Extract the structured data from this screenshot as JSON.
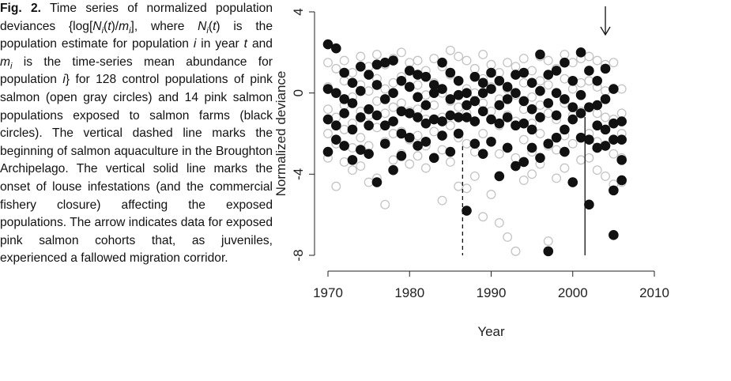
{
  "caption": [
    {
      "text": "Fig. 2.",
      "bold": true
    },
    {
      "text": " Time series of normalized population deviances {log["
    },
    {
      "text": "N",
      "italic": true
    },
    {
      "text": "i",
      "italic": true,
      "sub": true
    },
    {
      "text": "(",
      "italic": false
    },
    {
      "text": "t",
      "italic": true
    },
    {
      "text": ")/"
    },
    {
      "text": "m",
      "italic": true
    },
    {
      "text": "i",
      "italic": true,
      "sub": true
    },
    {
      "text": "], where "
    },
    {
      "text": "N",
      "italic": true
    },
    {
      "text": "i",
      "italic": true,
      "sub": true
    },
    {
      "text": "("
    },
    {
      "text": "t",
      "italic": true
    },
    {
      "text": ") is the population estimate for population "
    },
    {
      "text": "i",
      "italic": true
    },
    {
      "text": " in year "
    },
    {
      "text": "t",
      "italic": true
    },
    {
      "text": " and "
    },
    {
      "text": "m",
      "italic": true
    },
    {
      "text": "i",
      "italic": true,
      "sub": true
    },
    {
      "text": " is the time-series mean abundance for population "
    },
    {
      "text": "i",
      "italic": true
    },
    {
      "text": "} for 128 control populations of pink salmon (open gray circles) and 14 pink salmon populations exposed to salmon farms (black circles). The vertical dashed line marks the beginning of salmon aquaculture in the Broughton Archipelago. The vertical solid line marks the onset of louse infestations (and the commercial fishery closure) affecting the exposed populations. The arrow indicates data for exposed pink salmon cohorts that, as juveniles, experienced a fallowed migration corridor."
    }
  ],
  "chart_data": {
    "type": "scatter",
    "x_label": "Year",
    "y_label": "Normalized deviance",
    "xlim": [
      1970,
      2010
    ],
    "ylim": [
      -8,
      4
    ],
    "xticks": [
      1970,
      1980,
      1990,
      2000,
      2010
    ],
    "yticks": [
      4,
      0,
      -4,
      -8
    ],
    "dashed_line_x": 1986.5,
    "solid_line_x": 2001.5,
    "arrow_x": 2004,
    "series": [
      {
        "color": "#c4c4c4",
        "filled": false,
        "x": [
          1970,
          1970,
          1970,
          1970,
          1970,
          1971,
          1971,
          1971,
          1971,
          1971,
          1972,
          1972,
          1972,
          1972,
          1972,
          1973,
          1973,
          1973,
          1973,
          1973,
          1974,
          1974,
          1974,
          1974,
          1974,
          1975,
          1975,
          1975,
          1975,
          1975,
          1976,
          1976,
          1976,
          1976,
          1976,
          1977,
          1977,
          1977,
          1977,
          1977,
          1978,
          1978,
          1978,
          1978,
          1978,
          1979,
          1979,
          1979,
          1979,
          1979,
          1980,
          1980,
          1980,
          1980,
          1980,
          1981,
          1981,
          1981,
          1981,
          1981,
          1982,
          1982,
          1982,
          1982,
          1982,
          1983,
          1983,
          1983,
          1983,
          1983,
          1984,
          1984,
          1984,
          1984,
          1984,
          1985,
          1985,
          1985,
          1985,
          1985,
          1986,
          1986,
          1986,
          1986,
          1986,
          1987,
          1987,
          1987,
          1987,
          1987,
          1988,
          1988,
          1988,
          1988,
          1988,
          1989,
          1989,
          1989,
          1989,
          1989,
          1990,
          1990,
          1990,
          1990,
          1990,
          1991,
          1991,
          1991,
          1991,
          1991,
          1992,
          1992,
          1992,
          1992,
          1992,
          1993,
          1993,
          1993,
          1993,
          1993,
          1994,
          1994,
          1994,
          1994,
          1994,
          1995,
          1995,
          1995,
          1995,
          1995,
          1996,
          1996,
          1996,
          1996,
          1996,
          1997,
          1997,
          1997,
          1997,
          1997,
          1998,
          1998,
          1998,
          1998,
          1998,
          1999,
          1999,
          1999,
          1999,
          1999,
          2000,
          2000,
          2000,
          2000,
          2000,
          2001,
          2001,
          2001,
          2001,
          2001,
          2002,
          2002,
          2002,
          2002,
          2002,
          2003,
          2003,
          2003,
          2003,
          2003,
          2004,
          2004,
          2004,
          2004,
          2004,
          2005,
          2005,
          2005,
          2005,
          2005,
          2006,
          2006,
          2006,
          2006,
          2006
        ],
        "values": [
          1.5,
          0.3,
          -0.8,
          -2.0,
          -3.2,
          1.2,
          0.0,
          -1.2,
          -2.5,
          -4.6,
          1.6,
          0.6,
          -0.6,
          -1.8,
          -3.4,
          1.0,
          -0.2,
          -1.5,
          -2.7,
          -3.8,
          1.8,
          0.4,
          -0.9,
          -2.2,
          -3.6,
          1.3,
          0.1,
          -1.1,
          -2.6,
          -4.4,
          1.9,
          0.7,
          -0.4,
          -1.7,
          -4.2,
          1.4,
          0.2,
          -1.0,
          -2.4,
          -5.5,
          1.7,
          0.5,
          -0.7,
          -2.0,
          -3.3,
          2.0,
          0.8,
          -0.5,
          -1.9,
          -3.0,
          1.5,
          0.3,
          -0.9,
          -2.3,
          -3.5,
          1.6,
          0.4,
          -0.8,
          -2.1,
          -3.1,
          1.1,
          -0.1,
          -1.3,
          -2.6,
          -3.7,
          1.7,
          0.5,
          -0.6,
          -1.9,
          -3.2,
          1.3,
          0.0,
          -1.2,
          -2.8,
          -5.3,
          2.1,
          0.9,
          -0.4,
          -1.6,
          -3.4,
          1.8,
          0.6,
          -0.7,
          -2.2,
          -4.6,
          1.6,
          0.2,
          -1.0,
          -2.5,
          -4.7,
          1.2,
          0.0,
          -1.4,
          -2.9,
          -4.1,
          1.9,
          0.7,
          -0.5,
          -2.0,
          -6.1,
          1.4,
          0.3,
          -0.9,
          -2.4,
          -5.0,
          1.0,
          -0.3,
          -1.6,
          -3.0,
          -6.4,
          1.5,
          0.2,
          -1.1,
          -2.7,
          -7.1,
          1.3,
          -0.1,
          -1.4,
          -3.2,
          -7.8,
          1.7,
          0.5,
          -0.8,
          -2.3,
          -4.3,
          1.1,
          -0.2,
          -1.5,
          -2.9,
          -4.0,
          1.8,
          0.6,
          -0.6,
          -2.0,
          -3.5,
          1.6,
          0.4,
          -1.0,
          -2.6,
          -7.3,
          1.2,
          0.0,
          -1.3,
          -2.8,
          -4.2,
          1.9,
          0.7,
          -0.5,
          -2.1,
          -3.7,
          1.5,
          0.2,
          -1.1,
          -2.5,
          -4.4,
          1.7,
          0.5,
          -0.9,
          -2.2,
          -3.3,
          1.8,
          0.6,
          -0.7,
          -2.0,
          -3.2,
          1.6,
          0.3,
          -1.0,
          -2.4,
          -3.8,
          1.4,
          0.1,
          -1.2,
          -2.6,
          -4.1,
          1.5,
          0.2,
          -1.3,
          -3.0,
          -4.5,
          0.2,
          -1.0,
          -2.0,
          -3.2,
          -4.4
        ]
      },
      {
        "color": "#111111",
        "filled": true,
        "x": [
          1970,
          1970,
          1970,
          1970,
          1971,
          1971,
          1971,
          1971,
          1972,
          1972,
          1972,
          1972,
          1973,
          1973,
          1973,
          1973,
          1974,
          1974,
          1974,
          1974,
          1975,
          1975,
          1975,
          1975,
          1976,
          1976,
          1976,
          1976,
          1977,
          1977,
          1977,
          1977,
          1978,
          1978,
          1978,
          1978,
          1979,
          1979,
          1979,
          1979,
          1980,
          1980,
          1980,
          1980,
          1981,
          1981,
          1981,
          1981,
          1982,
          1982,
          1982,
          1982,
          1983,
          1983,
          1983,
          1983,
          1984,
          1984,
          1984,
          1984,
          1985,
          1985,
          1985,
          1985,
          1986,
          1986,
          1986,
          1986,
          1987,
          1987,
          1987,
          1987,
          1988,
          1988,
          1988,
          1988,
          1989,
          1989,
          1989,
          1989,
          1990,
          1990,
          1990,
          1990,
          1991,
          1991,
          1991,
          1991,
          1992,
          1992,
          1992,
          1992,
          1993,
          1993,
          1993,
          1993,
          1994,
          1994,
          1994,
          1994,
          1995,
          1995,
          1995,
          1995,
          1996,
          1996,
          1996,
          1996,
          1997,
          1997,
          1997,
          1997,
          1998,
          1998,
          1998,
          1998,
          1999,
          1999,
          1999,
          1999,
          2000,
          2000,
          2000,
          2000,
          2001,
          2001,
          2001,
          2001,
          2002,
          2002,
          2002,
          2002,
          2003,
          2003,
          2003,
          2003,
          2004,
          2004,
          2004,
          2004,
          2005,
          2005,
          2005,
          2005,
          2006,
          2006,
          2006,
          2006,
          2005
        ],
        "values": [
          2.4,
          0.2,
          -1.3,
          -2.9,
          2.2,
          0.0,
          -1.6,
          -2.3,
          1.0,
          -0.3,
          -1.0,
          -2.6,
          0.5,
          -0.5,
          -1.8,
          -3.3,
          1.3,
          0.1,
          -1.2,
          -2.8,
          0.9,
          -0.8,
          -1.6,
          -3.0,
          1.4,
          0.4,
          -1.1,
          -4.4,
          1.5,
          -0.3,
          -1.6,
          -2.5,
          1.6,
          0.0,
          -1.4,
          -3.8,
          0.6,
          -0.9,
          -2.0,
          -3.1,
          1.1,
          0.3,
          -1.0,
          -2.2,
          0.9,
          -0.2,
          -1.2,
          -2.6,
          0.8,
          -0.6,
          -1.5,
          -2.4,
          0.4,
          0.0,
          -1.3,
          -3.2,
          1.5,
          0.2,
          -1.4,
          -2.1,
          1.0,
          -0.3,
          -1.1,
          -2.9,
          0.6,
          -0.1,
          -1.2,
          -2.0,
          0.0,
          -0.6,
          -1.2,
          -5.8,
          0.8,
          -0.4,
          -1.4,
          -2.5,
          0.5,
          0.0,
          -0.9,
          -3.0,
          1.0,
          0.2,
          -1.3,
          -2.4,
          0.6,
          -0.6,
          -1.5,
          -4.1,
          0.3,
          -0.3,
          -1.2,
          -2.7,
          0.9,
          0.0,
          -1.6,
          -3.6,
          1.0,
          -0.4,
          -1.5,
          -3.4,
          0.5,
          -0.8,
          -1.8,
          -2.7,
          1.9,
          0.1,
          -1.2,
          -3.2,
          0.9,
          -0.5,
          -2.5,
          -7.8,
          1.1,
          0.0,
          -1.1,
          -2.2,
          1.5,
          -0.3,
          -1.8,
          -2.9,
          0.6,
          -0.7,
          -1.3,
          -4.4,
          2.0,
          -0.1,
          -1.0,
          -2.2,
          1.1,
          -0.7,
          -2.3,
          -5.5,
          0.6,
          -0.6,
          -1.6,
          -2.7,
          1.2,
          -0.3,
          -1.8,
          -2.6,
          0.2,
          -1.5,
          -2.3,
          -4.8,
          -1.4,
          -2.3,
          -3.3,
          -4.3,
          -7.0
        ]
      }
    ]
  }
}
